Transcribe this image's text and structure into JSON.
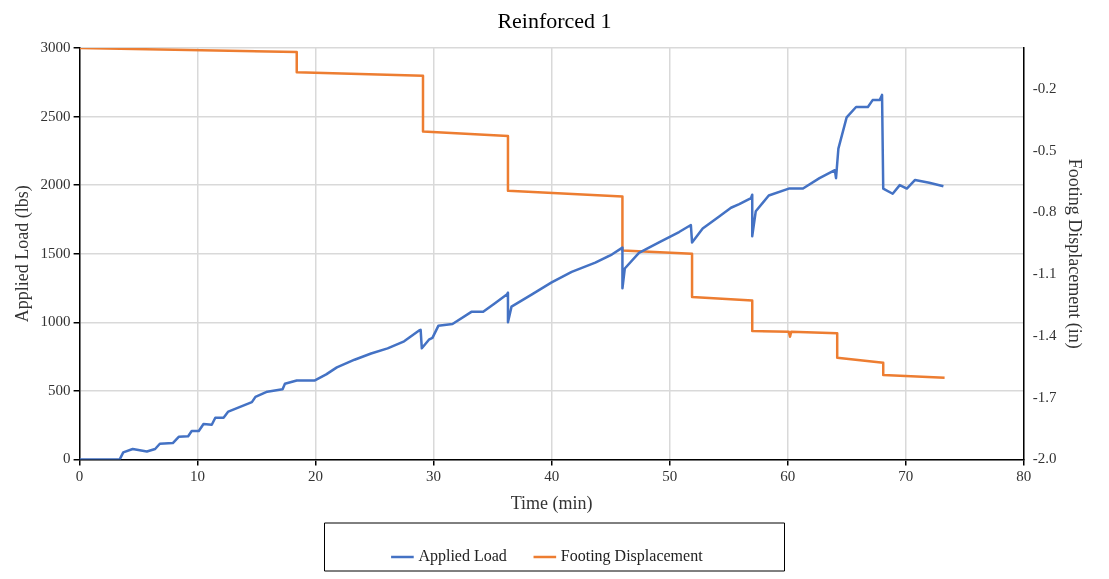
{
  "chart_data": {
    "type": "line",
    "title": "Reinforced 1",
    "xlabel": "Time (min)",
    "ylabel": "Applied Load (lbs)",
    "y2label": "Footing Displacement (in)",
    "xlim": [
      0,
      80
    ],
    "xticks": [
      0,
      10,
      20,
      30,
      40,
      50,
      60,
      70,
      80
    ],
    "ylim": [
      0,
      3000
    ],
    "yticks": [
      0,
      500,
      1000,
      1500,
      2000,
      2500,
      3000
    ],
    "y2lim": [
      -2,
      0
    ],
    "y2ticks": [
      {
        "value": -2.0,
        "label": "-2.0"
      },
      {
        "value": -1.7,
        "label": "-1.7"
      },
      {
        "value": -1.4,
        "label": "-1.4"
      },
      {
        "value": -1.1,
        "label": "-1.1"
      },
      {
        "value": -0.8,
        "label": "-0.8"
      },
      {
        "value": -0.5,
        "label": "-0.5"
      },
      {
        "value": -0.2,
        "label": "-0.2"
      }
    ],
    "grid": true,
    "legend": "bottom",
    "series": [
      {
        "name": "Applied Load",
        "color": "#4472c4",
        "x": [
          0,
          3.4,
          3.7,
          4.5,
          5.7,
          6.4,
          6.8,
          7.9,
          8.4,
          9.2,
          9.5,
          10.1,
          10.5,
          11.2,
          11.5,
          12.2,
          12.6,
          14.6,
          14.9,
          15.9,
          17.2,
          17.4,
          18.4,
          19.9,
          20.9,
          21.8,
          23.3,
          24.7,
          26.1,
          27.5,
          28.8,
          28.9,
          29.0,
          29.6,
          29.9,
          30.4,
          31.6,
          33.2,
          34.2,
          35.2,
          36.2,
          36.3,
          36.3,
          36.6,
          38.3,
          40.0,
          41.7,
          43.7,
          45.1,
          46.0,
          46.0,
          46.2,
          47.4,
          49.1,
          50.8,
          51.8,
          51.9,
          52.8,
          54.2,
          55.2,
          55.9,
          56.9,
          57.0,
          57.0,
          57.3,
          58.4,
          60.1,
          61.3,
          62.7,
          64.0,
          64.1,
          64.3,
          65.0,
          65.8,
          66.8,
          67.2,
          67.8,
          68.0,
          68.1,
          68.9,
          69.5,
          70.1,
          70.8,
          72.0,
          73.2
        ],
        "values": [
          0,
          0,
          51,
          76,
          58,
          76,
          114,
          119,
          165,
          169,
          207,
          207,
          258,
          253,
          304,
          304,
          349,
          418,
          456,
          494,
          511,
          552,
          575,
          575,
          620,
          671,
          727,
          772,
          810,
          861,
          942,
          945,
          810,
          873,
          886,
          974,
          987,
          1076,
          1076,
          1139,
          1202,
          1215,
          1000,
          1114,
          1202,
          1291,
          1367,
          1435,
          1494,
          1544,
          1248,
          1392,
          1506,
          1582,
          1658,
          1709,
          1582,
          1684,
          1772,
          1835,
          1861,
          1906,
          1930,
          1628,
          1810,
          1924,
          1975,
          1975,
          2051,
          2109,
          2051,
          2266,
          2494,
          2570,
          2570,
          2620,
          2620,
          2658,
          1975,
          1937,
          2000,
          1975,
          2038,
          2018,
          1992
        ]
      },
      {
        "name": "Footing Displacement",
        "color": "#ed7d31",
        "axis": "y2",
        "x": [
          0,
          18.4,
          18.4,
          29.1,
          29.1,
          36.3,
          36.3,
          46.0,
          46.0,
          51.9,
          51.9,
          57.0,
          57.0,
          60.1,
          60.2,
          60.3,
          64.2,
          64.2,
          68.1,
          68.1,
          73.3
        ],
        "values": [
          0,
          -0.02,
          -0.118,
          -0.135,
          -0.406,
          -0.428,
          -0.694,
          -0.722,
          -0.985,
          -1.0,
          -1.21,
          -1.227,
          -1.376,
          -1.38,
          -1.404,
          -1.38,
          -1.387,
          -1.506,
          -1.53,
          -1.59,
          -1.603
        ]
      }
    ]
  }
}
